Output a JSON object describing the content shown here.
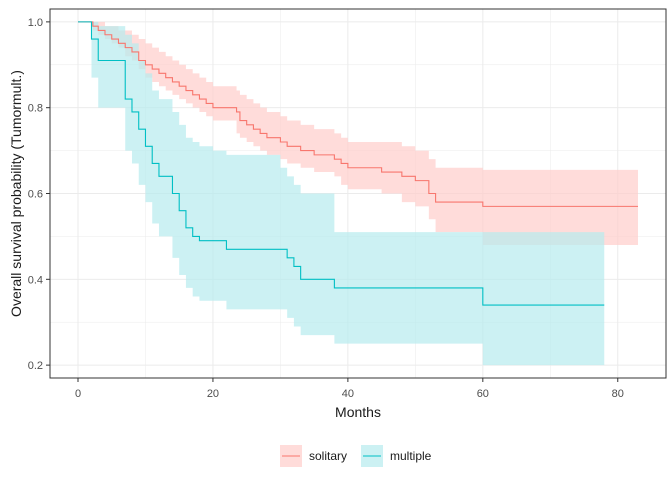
{
  "chart_data": {
    "type": "line",
    "subtype": "kaplan-meier-step",
    "title": "",
    "xlabel": "Months",
    "ylabel": "Overall survival probability (Tumormult.)",
    "xlim": [
      -4.15,
      87.15
    ],
    "ylim": [
      0.17,
      1.03
    ],
    "x_ticks": [
      0,
      20,
      40,
      60,
      80
    ],
    "y_ticks": [
      0.2,
      0.4,
      0.6,
      0.8,
      1.0
    ],
    "x_tick_labels": [
      "0",
      "20",
      "40",
      "60",
      "80"
    ],
    "y_tick_labels": [
      "0.2",
      "0.4",
      "0.6",
      "0.8",
      "1.0"
    ],
    "grid": true,
    "legend_position": "bottom",
    "confidence_bands": true,
    "series": [
      {
        "name": "solitary",
        "color": "#F8766D",
        "band_color": "#FFCDCB",
        "steps": [
          [
            0,
            1.0
          ],
          [
            2.2,
            0.99
          ],
          [
            3,
            0.98
          ],
          [
            4,
            0.97
          ],
          [
            5,
            0.96
          ],
          [
            6,
            0.95
          ],
          [
            7,
            0.94
          ],
          [
            8,
            0.93
          ],
          [
            9,
            0.91
          ],
          [
            10,
            0.9
          ],
          [
            11,
            0.89
          ],
          [
            12,
            0.88
          ],
          [
            13,
            0.87
          ],
          [
            14,
            0.86
          ],
          [
            15,
            0.85
          ],
          [
            16,
            0.84
          ],
          [
            17,
            0.83
          ],
          [
            18,
            0.82
          ],
          [
            19,
            0.81
          ],
          [
            20,
            0.8
          ],
          [
            23.5,
            0.79
          ],
          [
            24,
            0.77
          ],
          [
            25,
            0.76
          ],
          [
            26,
            0.75
          ],
          [
            27,
            0.74
          ],
          [
            28,
            0.73
          ],
          [
            30,
            0.72
          ],
          [
            31,
            0.71
          ],
          [
            33,
            0.7
          ],
          [
            35,
            0.69
          ],
          [
            38,
            0.68
          ],
          [
            39,
            0.67
          ],
          [
            40,
            0.66
          ],
          [
            45,
            0.65
          ],
          [
            48,
            0.64
          ],
          [
            50,
            0.63
          ],
          [
            52,
            0.6
          ],
          [
            53,
            0.58
          ],
          [
            60,
            0.57
          ],
          [
            83,
            0.57
          ]
        ],
        "band": [
          [
            0,
            1.0,
            1.0
          ],
          [
            2.2,
            0.98,
            1.0
          ],
          [
            3,
            0.97,
            1.0
          ],
          [
            4,
            0.96,
            0.99
          ],
          [
            5,
            0.95,
            0.99
          ],
          [
            6,
            0.94,
            0.98
          ],
          [
            7,
            0.92,
            0.98
          ],
          [
            8,
            0.91,
            0.97
          ],
          [
            9,
            0.89,
            0.96
          ],
          [
            10,
            0.87,
            0.95
          ],
          [
            11,
            0.86,
            0.94
          ],
          [
            12,
            0.85,
            0.93
          ],
          [
            13,
            0.84,
            0.92
          ],
          [
            14,
            0.83,
            0.91
          ],
          [
            15,
            0.82,
            0.9
          ],
          [
            16,
            0.81,
            0.89
          ],
          [
            17,
            0.8,
            0.88
          ],
          [
            18,
            0.79,
            0.87
          ],
          [
            19,
            0.78,
            0.86
          ],
          [
            20,
            0.77,
            0.85
          ],
          [
            23.5,
            0.74,
            0.84
          ],
          [
            24,
            0.73,
            0.83
          ],
          [
            25,
            0.72,
            0.82
          ],
          [
            26,
            0.71,
            0.81
          ],
          [
            27,
            0.7,
            0.8
          ],
          [
            28,
            0.69,
            0.79
          ],
          [
            30,
            0.68,
            0.78
          ],
          [
            31,
            0.67,
            0.77
          ],
          [
            33,
            0.66,
            0.76
          ],
          [
            35,
            0.65,
            0.75
          ],
          [
            38,
            0.64,
            0.74
          ],
          [
            39,
            0.62,
            0.73
          ],
          [
            40,
            0.61,
            0.72
          ],
          [
            45,
            0.6,
            0.72
          ],
          [
            48,
            0.58,
            0.71
          ],
          [
            50,
            0.57,
            0.7
          ],
          [
            52,
            0.54,
            0.68
          ],
          [
            53,
            0.51,
            0.66
          ],
          [
            60,
            0.48,
            0.655
          ],
          [
            83,
            0.48,
            0.655
          ]
        ]
      },
      {
        "name": "multiple",
        "color": "#00BFC4",
        "band_color": "#B6EBEE",
        "steps": [
          [
            0,
            1.0
          ],
          [
            2,
            0.96
          ],
          [
            3,
            0.91
          ],
          [
            5,
            0.91
          ],
          [
            7,
            0.82
          ],
          [
            8,
            0.79
          ],
          [
            9,
            0.75
          ],
          [
            10,
            0.71
          ],
          [
            11,
            0.67
          ],
          [
            12,
            0.64
          ],
          [
            14,
            0.6
          ],
          [
            15,
            0.56
          ],
          [
            16,
            0.52
          ],
          [
            17,
            0.5
          ],
          [
            18,
            0.49
          ],
          [
            20,
            0.49
          ],
          [
            22,
            0.47
          ],
          [
            30,
            0.47
          ],
          [
            31,
            0.45
          ],
          [
            32,
            0.43
          ],
          [
            33,
            0.4
          ],
          [
            38,
            0.38
          ],
          [
            60,
            0.34
          ],
          [
            78,
            0.34
          ]
        ],
        "band": [
          [
            0,
            1.0,
            1.0
          ],
          [
            2,
            0.87,
            1.0
          ],
          [
            3,
            0.8,
            0.99
          ],
          [
            5,
            0.8,
            0.99
          ],
          [
            7,
            0.7,
            0.97
          ],
          [
            8,
            0.67,
            0.95
          ],
          [
            9,
            0.62,
            0.91
          ],
          [
            10,
            0.58,
            0.88
          ],
          [
            11,
            0.53,
            0.84
          ],
          [
            12,
            0.5,
            0.82
          ],
          [
            14,
            0.45,
            0.79
          ],
          [
            15,
            0.41,
            0.76
          ],
          [
            16,
            0.38,
            0.73
          ],
          [
            17,
            0.36,
            0.72
          ],
          [
            18,
            0.35,
            0.71
          ],
          [
            20,
            0.35,
            0.7
          ],
          [
            22,
            0.33,
            0.69
          ],
          [
            30,
            0.33,
            0.66
          ],
          [
            31,
            0.31,
            0.64
          ],
          [
            32,
            0.29,
            0.62
          ],
          [
            33,
            0.27,
            0.6
          ],
          [
            38,
            0.25,
            0.51
          ],
          [
            60,
            0.2,
            0.51
          ],
          [
            78,
            0.2,
            0.51
          ]
        ]
      }
    ]
  }
}
